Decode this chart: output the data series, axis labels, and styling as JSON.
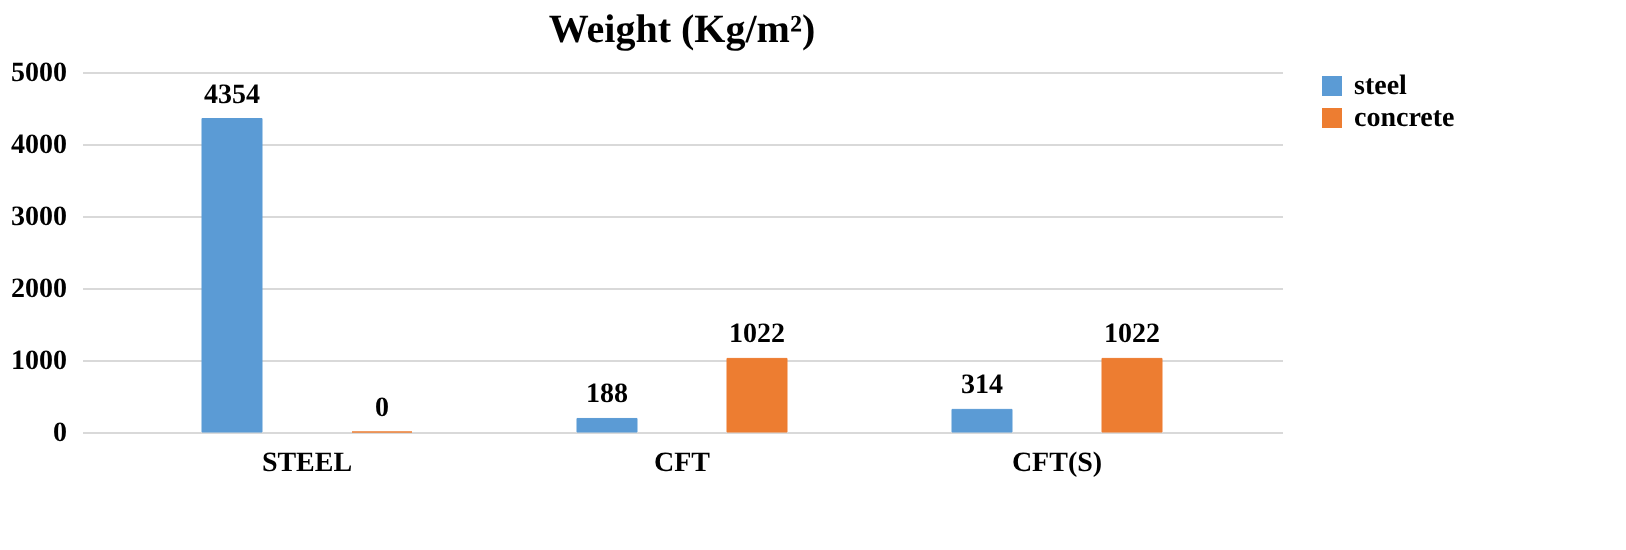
{
  "chart_data": {
    "type": "bar",
    "title": "Weight (Kg/m²)",
    "categories": [
      "STEEL",
      "CFT",
      "CFT(S)"
    ],
    "series": [
      {
        "name": "steel",
        "color": "#5b9bd5",
        "values": [
          4354,
          188,
          314
        ]
      },
      {
        "name": "concrete",
        "color": "#ed7d31",
        "values": [
          0,
          1022,
          1022
        ]
      }
    ],
    "ylim": [
      0,
      5000
    ],
    "yticks": [
      0,
      1000,
      2000,
      3000,
      4000,
      5000
    ],
    "grid": "y",
    "legend": "right",
    "data_labels": true
  }
}
